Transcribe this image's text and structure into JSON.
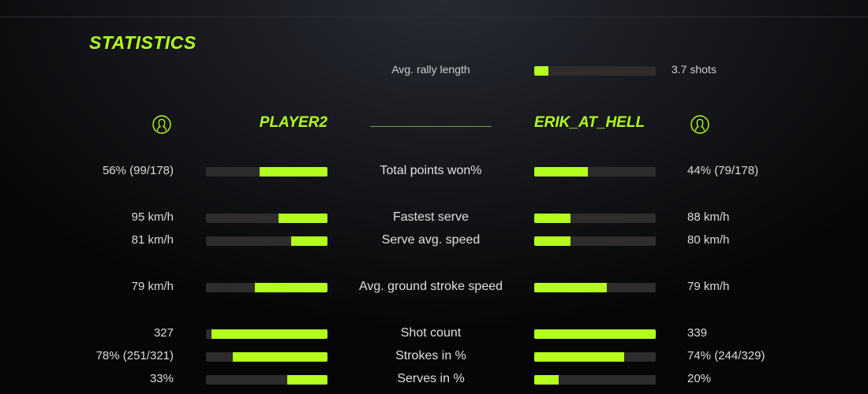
{
  "title": "STATISTICS",
  "accent_color": "#b4ff1e",
  "rally": {
    "label": "Avg. rally length",
    "value": "3.7 shots",
    "fill": 0.12
  },
  "players": {
    "left": {
      "name": "PLAYER2",
      "icon": "user-avatar-icon"
    },
    "right": {
      "name": "ERIK_AT_HELL",
      "icon": "user-avatar-icon"
    }
  },
  "stats": [
    {
      "label": "Total points won%",
      "left": "56% (99/178)",
      "right": "44% (79/178)",
      "left_fill": 0.56,
      "right_fill": 0.44
    },
    {
      "label": "Fastest serve",
      "left": "95 km/h",
      "right": "88 km/h",
      "left_fill": 0.4,
      "right_fill": 0.3
    },
    {
      "label": "Serve avg. speed",
      "left": "81 km/h",
      "right": "80 km/h",
      "left_fill": 0.3,
      "right_fill": 0.3
    },
    {
      "label": "Avg. ground stroke speed",
      "left": "79 km/h",
      "right": "79 km/h",
      "left_fill": 0.6,
      "right_fill": 0.6
    },
    {
      "label": "Shot count",
      "left": "327",
      "right": "339",
      "left_fill": 0.955,
      "right_fill": 1.0
    },
    {
      "label": "Strokes in %",
      "left": "78% (251/321)",
      "right": "74% (244/329)",
      "left_fill": 0.78,
      "right_fill": 0.74
    },
    {
      "label": "Serves in %",
      "left": "33%",
      "right": "20%",
      "left_fill": 0.33,
      "right_fill": 0.2
    }
  ]
}
